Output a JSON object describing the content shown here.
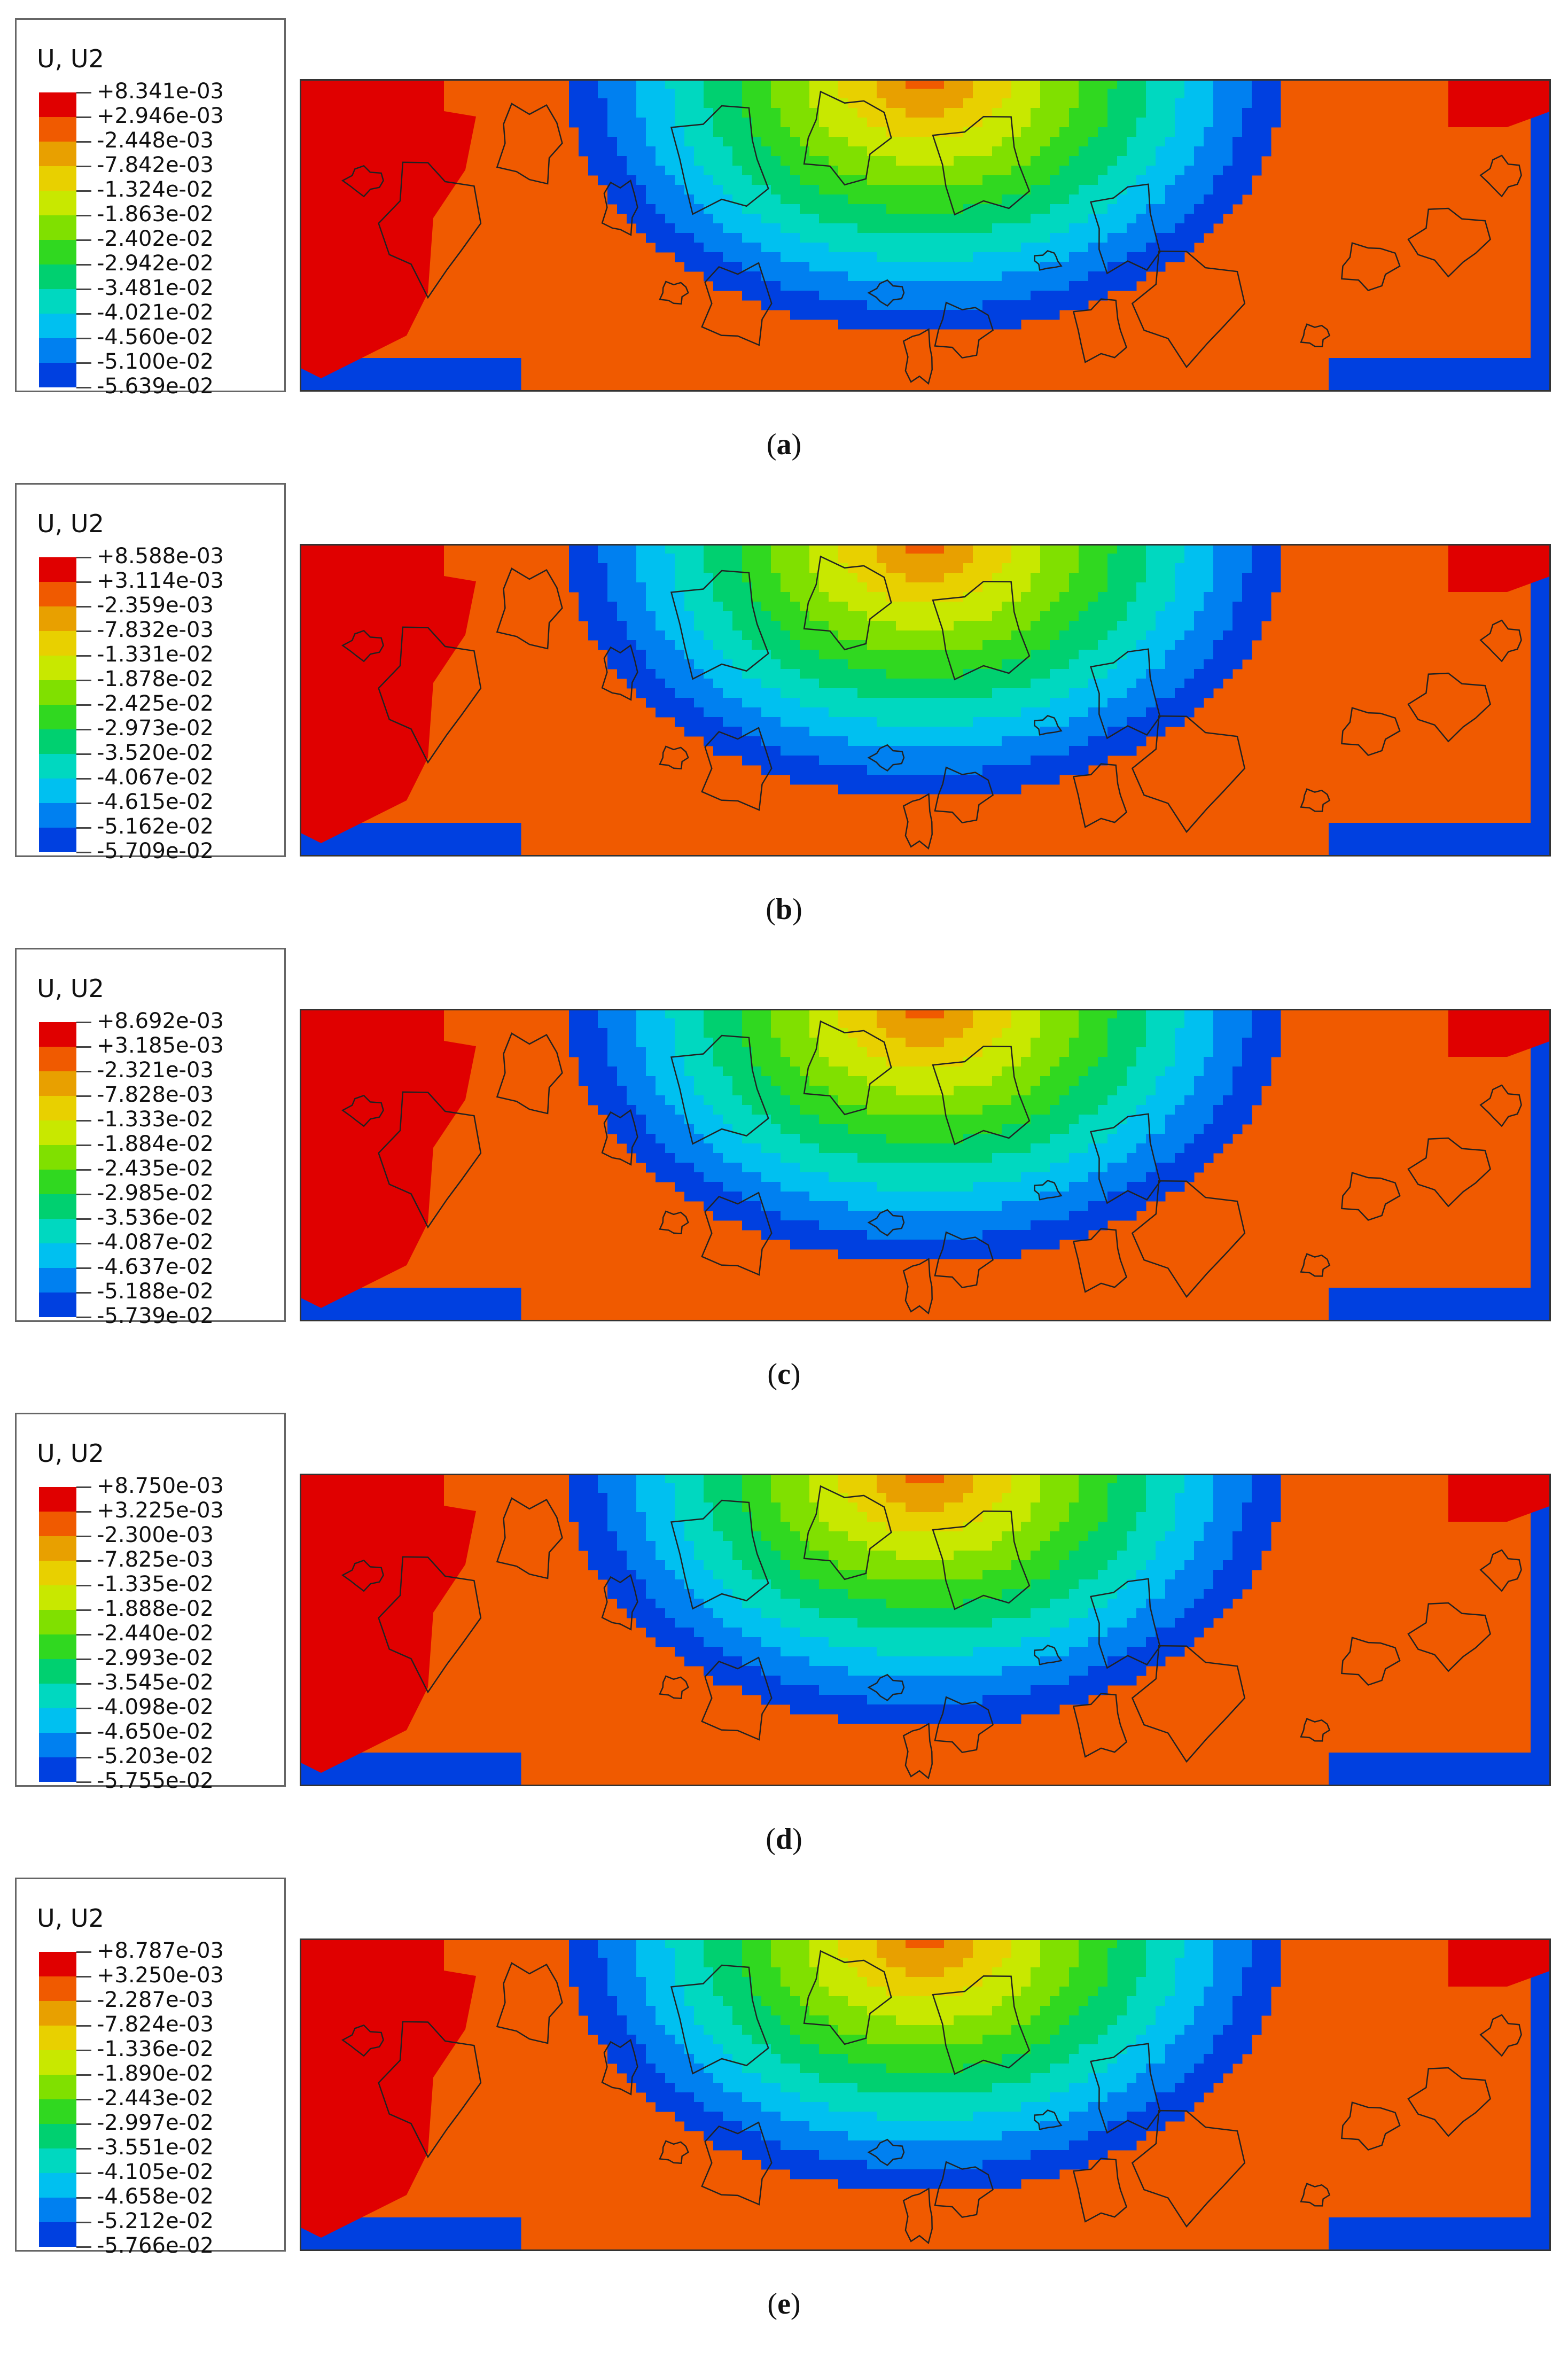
{
  "chart_data": [
    {
      "type": "heatmap",
      "title": "U, U2",
      "caption_letter": "a",
      "legend_labels": [
        "+8.341e-03",
        "+2.946e-03",
        "-2.448e-03",
        "-7.842e-03",
        "-1.324e-02",
        "-1.863e-02",
        "-2.402e-02",
        "-2.942e-02",
        "-3.481e-02",
        "-4.021e-02",
        "-4.560e-02",
        "-5.100e-02",
        "-5.639e-02"
      ]
    },
    {
      "type": "heatmap",
      "title": "U, U2",
      "caption_letter": "b",
      "legend_labels": [
        "+8.588e-03",
        "+3.114e-03",
        "-2.359e-03",
        "-7.832e-03",
        "-1.331e-02",
        "-1.878e-02",
        "-2.425e-02",
        "-2.973e-02",
        "-3.520e-02",
        "-4.067e-02",
        "-4.615e-02",
        "-5.162e-02",
        "-5.709e-02"
      ]
    },
    {
      "type": "heatmap",
      "title": "U, U2",
      "caption_letter": "c",
      "legend_labels": [
        "+8.692e-03",
        "+3.185e-03",
        "-2.321e-03",
        "-7.828e-03",
        "-1.333e-02",
        "-1.884e-02",
        "-2.435e-02",
        "-2.985e-02",
        "-3.536e-02",
        "-4.087e-02",
        "-4.637e-02",
        "-5.188e-02",
        "-5.739e-02"
      ]
    },
    {
      "type": "heatmap",
      "title": "U, U2",
      "caption_letter": "d",
      "legend_labels": [
        "+8.750e-03",
        "+3.225e-03",
        "-2.300e-03",
        "-7.825e-03",
        "-1.335e-02",
        "-1.888e-02",
        "-2.440e-02",
        "-2.993e-02",
        "-3.545e-02",
        "-4.098e-02",
        "-4.650e-02",
        "-5.203e-02",
        "-5.755e-02"
      ]
    },
    {
      "type": "heatmap",
      "title": "U, U2",
      "caption_letter": "e",
      "legend_labels": [
        "+8.787e-03",
        "+3.250e-03",
        "-2.287e-03",
        "-7.824e-03",
        "-1.336e-02",
        "-1.890e-02",
        "-2.443e-02",
        "-2.997e-02",
        "-3.551e-02",
        "-4.105e-02",
        "-4.658e-02",
        "-5.212e-02",
        "-5.766e-02"
      ]
    }
  ],
  "colormap": [
    "#e00000",
    "#f05a00",
    "#e8a000",
    "#e8d000",
    "#c8e800",
    "#80e000",
    "#30d820",
    "#00d070",
    "#00d8c0",
    "#00c0f0",
    "#0080f0",
    "#0040e0",
    "#0000e0"
  ]
}
